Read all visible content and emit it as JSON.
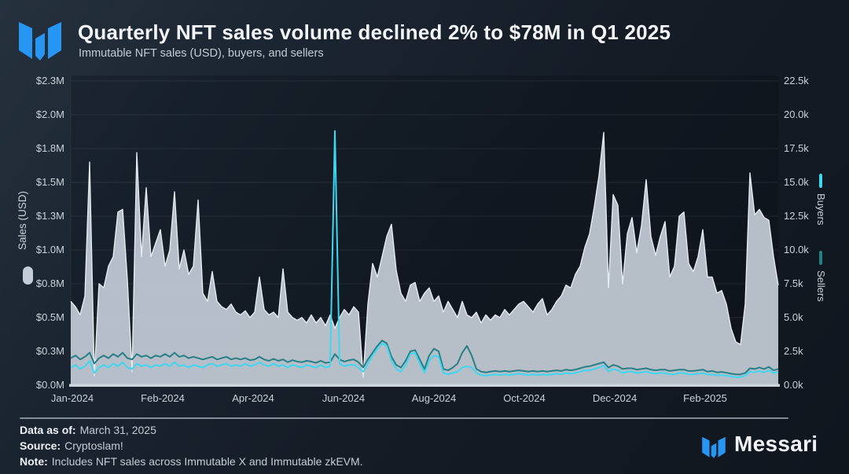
{
  "header": {
    "title": "Quarterly NFT sales volume declined 2% to $78M in Q1 2025",
    "subtitle": "Immutable NFT sales (USD), buyers, and sellers"
  },
  "branding": {
    "wordmark": "Messari",
    "logo_color": "#2795f2"
  },
  "chart_data": {
    "type": "area",
    "title": "Quarterly NFT sales volume declined 2% to $78M in Q1 2025",
    "subtitle": "Immutable NFT sales (USD), buyers, and sellers",
    "grid": true,
    "legend_position": "axes",
    "x_ticks": [
      "Jan-2024",
      "Feb-2024",
      "Apr-2024",
      "Jun-2024",
      "Aug-2024",
      "Oct-2024",
      "Dec-2024",
      "Feb-2025"
    ],
    "left_axis": {
      "label": "Sales (USD)",
      "max": 2.25,
      "ticks": [
        "$0.0M",
        "$0.3M",
        "$0.5M",
        "$0.8M",
        "$1.0M",
        "$1.3M",
        "$1.5M",
        "$1.8M",
        "$2.0M",
        "$2.3M"
      ]
    },
    "right_axis": {
      "max": 22.5,
      "ticks": [
        "0.0k",
        "2.5k",
        "5.0k",
        "7.5k",
        "10.0k",
        "12.5k",
        "15.0k",
        "17.5k",
        "20.0k",
        "22.5k"
      ]
    },
    "series": [
      {
        "name": "Sales (USD)",
        "type": "area",
        "axis": "left",
        "unit": "$M per day",
        "color": "#c4cdd7",
        "values": [
          0.62,
          0.58,
          0.52,
          0.66,
          1.65,
          0.07,
          0.75,
          0.72,
          0.88,
          0.95,
          1.28,
          1.3,
          0.78,
          0.1,
          1.72,
          0.95,
          1.46,
          0.95,
          1.05,
          1.15,
          0.88,
          1.0,
          1.43,
          0.86,
          1.0,
          0.82,
          0.88,
          1.37,
          0.68,
          0.62,
          0.84,
          0.62,
          0.58,
          0.56,
          0.6,
          0.54,
          0.52,
          0.55,
          0.5,
          0.54,
          0.8,
          0.56,
          0.52,
          0.54,
          0.5,
          0.86,
          0.54,
          0.5,
          0.48,
          0.5,
          0.46,
          0.52,
          0.46,
          0.5,
          0.44,
          0.52,
          0.42,
          0.5,
          0.56,
          0.52,
          0.58,
          0.54,
          0.06,
          0.6,
          0.9,
          0.8,
          0.95,
          1.1,
          1.19,
          0.85,
          0.68,
          0.62,
          0.74,
          0.76,
          0.62,
          0.68,
          0.72,
          0.62,
          0.66,
          0.54,
          0.62,
          0.56,
          0.5,
          0.62,
          0.52,
          0.5,
          0.54,
          0.46,
          0.52,
          0.48,
          0.52,
          0.5,
          0.56,
          0.52,
          0.56,
          0.6,
          0.62,
          0.58,
          0.54,
          0.6,
          0.64,
          0.52,
          0.56,
          0.62,
          0.66,
          0.74,
          0.72,
          0.82,
          0.88,
          1.02,
          1.12,
          1.32,
          1.55,
          1.87,
          0.72,
          1.41,
          1.33,
          0.75,
          1.12,
          1.24,
          0.98,
          1.18,
          1.52,
          1.1,
          0.96,
          1.1,
          1.21,
          0.8,
          0.88,
          1.25,
          1.28,
          0.9,
          0.84,
          0.95,
          1.15,
          0.8,
          0.8,
          0.68,
          0.7,
          0.6,
          0.42,
          0.32,
          0.3,
          0.6,
          1.57,
          1.26,
          1.3,
          1.24,
          1.22,
          0.95,
          0.74
        ]
      },
      {
        "name": "Buyers",
        "type": "line",
        "axis": "right",
        "unit": "thousands per day",
        "color": "#3fd6f0",
        "values": [
          1.3,
          1.5,
          1.2,
          1.4,
          1.8,
          0.9,
          1.3,
          1.5,
          1.3,
          1.6,
          1.4,
          1.7,
          1.3,
          1.2,
          1.6,
          1.4,
          1.5,
          1.3,
          1.5,
          1.4,
          1.6,
          1.4,
          1.7,
          1.4,
          1.5,
          1.3,
          1.5,
          1.4,
          1.3,
          1.5,
          1.6,
          1.4,
          1.5,
          1.6,
          1.4,
          1.5,
          1.4,
          1.6,
          1.4,
          1.5,
          1.7,
          1.5,
          1.4,
          1.6,
          1.4,
          1.5,
          1.3,
          1.5,
          1.4,
          1.3,
          1.5,
          1.4,
          1.3,
          1.5,
          1.3,
          1.4,
          18.8,
          1.6,
          1.4,
          1.5,
          1.5,
          1.3,
          1.0,
          1.6,
          2.2,
          2.7,
          3.1,
          2.9,
          1.8,
          1.2,
          1.0,
          1.5,
          2.3,
          2.4,
          1.6,
          0.9,
          1.8,
          2.2,
          2.1,
          0.9,
          0.8,
          0.9,
          1.0,
          1.3,
          1.4,
          1.3,
          0.9,
          0.75,
          0.7,
          0.75,
          0.8,
          0.75,
          0.8,
          0.75,
          0.8,
          0.85,
          0.8,
          0.75,
          0.8,
          0.75,
          0.8,
          0.75,
          0.8,
          0.85,
          0.8,
          0.9,
          0.85,
          0.9,
          1.0,
          1.1,
          1.1,
          1.2,
          1.3,
          1.45,
          1.0,
          1.2,
          1.1,
          0.9,
          1.0,
          1.0,
          0.9,
          0.95,
          1.0,
          0.9,
          0.85,
          0.9,
          0.9,
          0.8,
          0.8,
          0.9,
          0.9,
          0.8,
          0.8,
          0.85,
          0.9,
          0.78,
          0.8,
          0.72,
          0.75,
          0.7,
          0.65,
          0.6,
          0.6,
          0.7,
          1.0,
          0.95,
          1.05,
          0.95,
          1.1,
          0.9,
          1.0
        ]
      },
      {
        "name": "Sellers",
        "type": "line",
        "axis": "right",
        "unit": "thousands per day",
        "color": "#277f86",
        "values": [
          2.0,
          2.2,
          1.9,
          2.1,
          2.4,
          1.6,
          2.0,
          2.2,
          2.0,
          2.3,
          2.1,
          2.4,
          2.0,
          1.9,
          2.3,
          2.1,
          2.2,
          2.0,
          2.2,
          2.1,
          2.3,
          2.1,
          2.4,
          2.1,
          2.2,
          2.0,
          2.1,
          2.0,
          1.9,
          2.0,
          2.1,
          1.9,
          2.0,
          2.1,
          1.9,
          2.0,
          1.9,
          2.0,
          1.85,
          1.9,
          2.1,
          1.9,
          1.8,
          1.95,
          1.8,
          1.9,
          1.7,
          1.85,
          1.75,
          1.7,
          1.8,
          1.75,
          1.65,
          1.8,
          1.65,
          1.7,
          2.3,
          1.9,
          1.75,
          1.85,
          1.9,
          1.7,
          1.3,
          1.9,
          2.4,
          2.9,
          3.3,
          3.1,
          2.1,
          1.5,
          1.3,
          1.8,
          2.5,
          2.6,
          1.9,
          1.2,
          2.2,
          2.7,
          2.5,
          1.2,
          1.1,
          1.3,
          1.6,
          2.4,
          2.9,
          2.2,
          1.2,
          1.0,
          0.95,
          1.0,
          1.05,
          1.0,
          1.05,
          1.0,
          1.05,
          1.1,
          1.05,
          1.0,
          1.05,
          1.0,
          1.05,
          1.0,
          1.05,
          1.1,
          1.05,
          1.15,
          1.1,
          1.15,
          1.25,
          1.35,
          1.4,
          1.5,
          1.6,
          1.7,
          1.3,
          1.5,
          1.4,
          1.2,
          1.25,
          1.25,
          1.15,
          1.2,
          1.25,
          1.15,
          1.1,
          1.15,
          1.15,
          1.05,
          1.1,
          1.15,
          1.15,
          1.05,
          1.05,
          1.1,
          1.15,
          1.0,
          1.05,
          0.95,
          0.98,
          0.92,
          0.85,
          0.8,
          0.8,
          0.9,
          1.25,
          1.2,
          1.3,
          1.2,
          1.35,
          1.1,
          1.2
        ]
      }
    ]
  },
  "footer": {
    "data_as_of_label": "Data as of:",
    "data_as_of": "March 31, 2025",
    "source_label": "Source:",
    "source": "Cryptoslam!",
    "note_label": "Note:",
    "note": "Includes NFT sales across Immutable X and Immutable zkEVM."
  }
}
